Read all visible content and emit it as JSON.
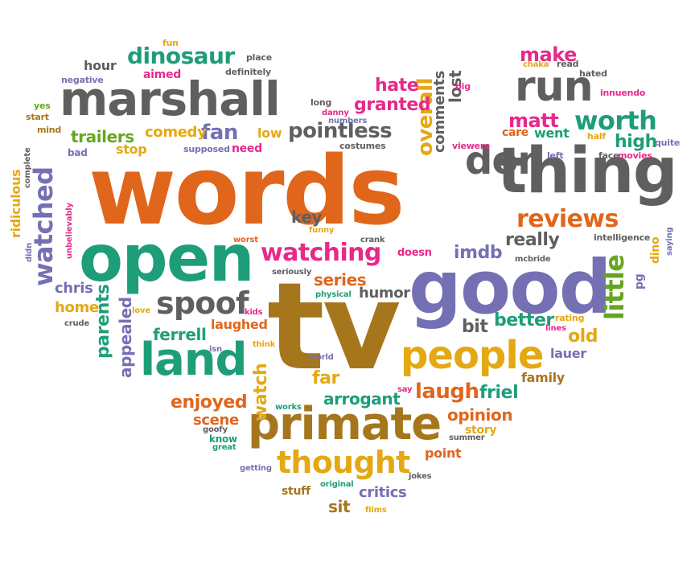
{
  "colors": {
    "orange": "#e0661c",
    "gray": "#5f5f5f",
    "green": "#1e9e78",
    "purple": "#7570b3",
    "gold": "#e4a812",
    "brown": "#a6761d",
    "pink": "#e7298a",
    "lime": "#66a61e"
  },
  "words": [
    {
      "text": "words",
      "color": "orange"
    },
    {
      "text": "tv",
      "color": "brown"
    },
    {
      "text": "good",
      "color": "purple"
    },
    {
      "text": "open",
      "color": "green"
    },
    {
      "text": "thing",
      "color": "gray"
    },
    {
      "text": "marshall",
      "color": "gray"
    },
    {
      "text": "primate",
      "color": "brown"
    },
    {
      "text": "people",
      "color": "gold"
    },
    {
      "text": "land",
      "color": "green"
    },
    {
      "text": "run",
      "color": "gray"
    },
    {
      "text": "don",
      "color": "gray"
    },
    {
      "text": "spoof",
      "color": "gray"
    },
    {
      "text": "thought",
      "color": "gold"
    },
    {
      "text": "watching",
      "color": "pink"
    },
    {
      "text": "reviews",
      "color": "orange"
    },
    {
      "text": "watched",
      "color": "purple"
    },
    {
      "text": "dinosaur",
      "color": "green"
    },
    {
      "text": "pointless",
      "color": "gray"
    },
    {
      "text": "worth",
      "color": "green"
    },
    {
      "text": "little",
      "color": "lime"
    },
    {
      "text": "overall",
      "color": "gold"
    },
    {
      "text": "fan",
      "color": "purple"
    },
    {
      "text": "laugh",
      "color": "orange"
    },
    {
      "text": "hate",
      "color": "pink"
    },
    {
      "text": "granted",
      "color": "pink"
    },
    {
      "text": "matt",
      "color": "pink"
    },
    {
      "text": "make",
      "color": "pink"
    },
    {
      "text": "high",
      "color": "green"
    },
    {
      "text": "trailers",
      "color": "lime"
    },
    {
      "text": "comedy",
      "color": "gold"
    },
    {
      "text": "lost",
      "color": "gray"
    },
    {
      "text": "comments",
      "color": "gray"
    },
    {
      "text": "really",
      "color": "gray"
    },
    {
      "text": "imdb",
      "color": "purple"
    },
    {
      "text": "key",
      "color": "gray"
    },
    {
      "text": "series",
      "color": "orange"
    },
    {
      "text": "humor",
      "color": "gray"
    },
    {
      "text": "bit",
      "color": "gray"
    },
    {
      "text": "better",
      "color": "green"
    },
    {
      "text": "old",
      "color": "gold"
    },
    {
      "text": "chris",
      "color": "purple"
    },
    {
      "text": "home",
      "color": "gold"
    },
    {
      "text": "parents",
      "color": "green"
    },
    {
      "text": "appealed",
      "color": "purple"
    },
    {
      "text": "ferrell",
      "color": "green"
    },
    {
      "text": "laughed",
      "color": "orange"
    },
    {
      "text": "enjoyed",
      "color": "orange"
    },
    {
      "text": "scene",
      "color": "orange"
    },
    {
      "text": "watch",
      "color": "gold"
    },
    {
      "text": "far",
      "color": "gold"
    },
    {
      "text": "arrogant",
      "color": "green"
    },
    {
      "text": "friel",
      "color": "green"
    },
    {
      "text": "opinion",
      "color": "orange"
    },
    {
      "text": "story",
      "color": "gold"
    },
    {
      "text": "critics",
      "color": "purple"
    },
    {
      "text": "sit",
      "color": "brown"
    },
    {
      "text": "stuff",
      "color": "brown"
    },
    {
      "text": "point",
      "color": "orange"
    },
    {
      "text": "family",
      "color": "brown"
    },
    {
      "text": "lauer",
      "color": "purple"
    },
    {
      "text": "hour",
      "color": "gray"
    },
    {
      "text": "aimed",
      "color": "pink"
    },
    {
      "text": "place",
      "color": "gray"
    },
    {
      "text": "definitely",
      "color": "gray"
    },
    {
      "text": "fun",
      "color": "gold"
    },
    {
      "text": "negative",
      "color": "purple"
    },
    {
      "text": "yes",
      "color": "lime"
    },
    {
      "text": "start",
      "color": "brown"
    },
    {
      "text": "mind",
      "color": "brown"
    },
    {
      "text": "bad",
      "color": "purple"
    },
    {
      "text": "complete",
      "color": "gray"
    },
    {
      "text": "ridiculous",
      "color": "gold"
    },
    {
      "text": "didn",
      "color": "purple"
    },
    {
      "text": "unbelievably",
      "color": "pink"
    },
    {
      "text": "stop",
      "color": "gold"
    },
    {
      "text": "supposed",
      "color": "purple"
    },
    {
      "text": "need",
      "color": "pink"
    },
    {
      "text": "low",
      "color": "gold"
    },
    {
      "text": "costumes",
      "color": "gray"
    },
    {
      "text": "long",
      "color": "gray"
    },
    {
      "text": "danny",
      "color": "pink"
    },
    {
      "text": "numbers",
      "color": "purple"
    },
    {
      "text": "big",
      "color": "pink"
    },
    {
      "text": "viewers",
      "color": "pink"
    },
    {
      "text": "care",
      "color": "orange"
    },
    {
      "text": "went",
      "color": "green"
    },
    {
      "text": "half",
      "color": "gold"
    },
    {
      "text": "left",
      "color": "purple"
    },
    {
      "text": "face",
      "color": "gray"
    },
    {
      "text": "movies",
      "color": "pink"
    },
    {
      "text": "quite",
      "color": "purple"
    },
    {
      "text": "chaka",
      "color": "gold"
    },
    {
      "text": "read",
      "color": "gray"
    },
    {
      "text": "hated",
      "color": "gray"
    },
    {
      "text": "innuendo",
      "color": "pink"
    },
    {
      "text": "intelligence",
      "color": "gray"
    },
    {
      "text": "dino",
      "color": "gold"
    },
    {
      "text": "saying",
      "color": "purple"
    },
    {
      "text": "pg",
      "color": "purple"
    },
    {
      "text": "mcbride",
      "color": "gray"
    },
    {
      "text": "rating",
      "color": "gold"
    },
    {
      "text": "lines",
      "color": "pink"
    },
    {
      "text": "worst",
      "color": "orange"
    },
    {
      "text": "funny",
      "color": "gold"
    },
    {
      "text": "crank",
      "color": "gray"
    },
    {
      "text": "doesn",
      "color": "pink"
    },
    {
      "text": "seriously",
      "color": "gray"
    },
    {
      "text": "physical",
      "color": "green"
    },
    {
      "text": "kids",
      "color": "pink"
    },
    {
      "text": "love",
      "color": "gold"
    },
    {
      "text": "crude",
      "color": "gray"
    },
    {
      "text": "isn",
      "color": "purple"
    },
    {
      "text": "think",
      "color": "gold"
    },
    {
      "text": "world",
      "color": "purple"
    },
    {
      "text": "say",
      "color": "pink"
    },
    {
      "text": "goofy",
      "color": "gray"
    },
    {
      "text": "know",
      "color": "green"
    },
    {
      "text": "great",
      "color": "green"
    },
    {
      "text": "works",
      "color": "green"
    },
    {
      "text": "summer",
      "color": "gray"
    },
    {
      "text": "getting",
      "color": "purple"
    },
    {
      "text": "original",
      "color": "green"
    },
    {
      "text": "jokes",
      "color": "gray"
    },
    {
      "text": "films",
      "color": "gold"
    }
  ]
}
